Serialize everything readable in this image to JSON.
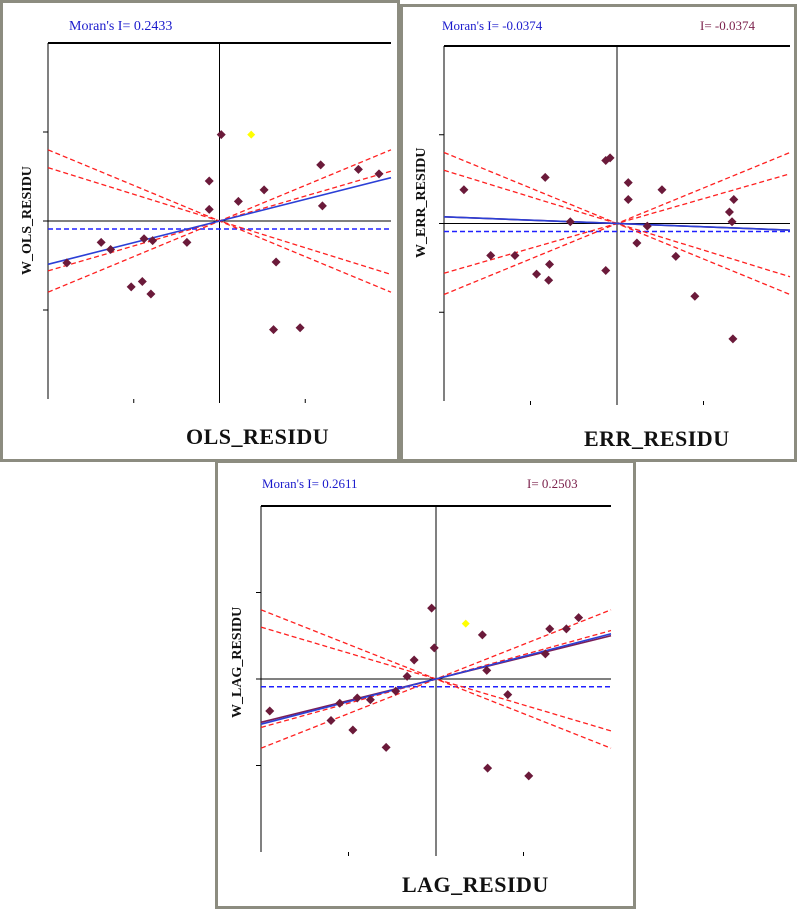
{
  "colors": {
    "point": "#6b1a3a",
    "highlight": "#ffff00",
    "axis": "#000000",
    "fit_primary": "#2b3fd6",
    "fit_secondary": "#7a1f5a",
    "envelope": "#ff2020",
    "mean_line": "#2020ff"
  },
  "chart_data": [
    {
      "type": "scatter",
      "title": "Moran's I= 0.2433",
      "secondary_title": "",
      "xlabel": "OLS_RESIDU",
      "ylabel": "W_OLS_RESIDU",
      "xlim": [
        -2,
        2
      ],
      "ylim": [
        -2,
        2
      ],
      "points": [
        [
          -1.78,
          -0.47
        ],
        [
          -1.38,
          -0.24
        ],
        [
          -1.27,
          -0.32
        ],
        [
          -1.03,
          -0.74
        ],
        [
          -0.9,
          -0.68
        ],
        [
          -0.88,
          -0.2
        ],
        [
          -0.8,
          -0.82
        ],
        [
          -0.78,
          -0.22
        ],
        [
          -0.38,
          -0.24
        ],
        [
          -0.12,
          0.13
        ],
        [
          -0.12,
          0.45
        ],
        [
          0.02,
          0.97
        ],
        [
          0.22,
          0.22
        ],
        [
          0.52,
          0.35
        ],
        [
          0.66,
          -0.46
        ],
        [
          0.63,
          -1.22
        ],
        [
          0.94,
          -1.2
        ],
        [
          1.18,
          0.63
        ],
        [
          1.2,
          0.17
        ],
        [
          1.62,
          0.58
        ],
        [
          1.86,
          0.53
        ]
      ],
      "highlight": [
        [
          0.37,
          0.97
        ]
      ],
      "fit_primary": {
        "slope": 0.2433,
        "intercept": 0.0
      },
      "fit_secondary": null,
      "envelope_lines": [
        {
          "slope": -0.4,
          "intercept": 0.0
        },
        {
          "slope": -0.3,
          "intercept": 0.0
        },
        {
          "slope": 0.4,
          "intercept": 0.0
        },
        {
          "slope": 0.28,
          "intercept": 0.0
        }
      ],
      "mean_line_y": -0.09
    },
    {
      "type": "scatter",
      "title": "Moran's I= -0.0374",
      "secondary_title": "I= -0.0374",
      "xlabel": "ERR_RESIDU",
      "ylabel": "W_ERR_RESIDU",
      "xlim": [
        -2,
        2
      ],
      "ylim": [
        -2,
        2
      ],
      "points": [
        [
          -1.77,
          0.38
        ],
        [
          -1.46,
          -0.36
        ],
        [
          -1.18,
          -0.36
        ],
        [
          -0.93,
          -0.57
        ],
        [
          -0.83,
          0.52
        ],
        [
          -0.79,
          -0.64
        ],
        [
          -0.78,
          -0.46
        ],
        [
          -0.54,
          0.02
        ],
        [
          -0.13,
          0.71
        ],
        [
          -0.08,
          0.74
        ],
        [
          -0.13,
          -0.53
        ],
        [
          0.13,
          0.46
        ],
        [
          0.13,
          0.27
        ],
        [
          0.23,
          -0.22
        ],
        [
          0.35,
          -0.03
        ],
        [
          0.52,
          0.38
        ],
        [
          0.68,
          -0.37
        ],
        [
          0.9,
          -0.82
        ],
        [
          1.33,
          0.02
        ],
        [
          1.3,
          0.13
        ],
        [
          1.35,
          0.27
        ],
        [
          1.34,
          -1.3
        ]
      ],
      "highlight": [],
      "fit_primary": {
        "slope": -0.0374,
        "intercept": 0.0
      },
      "fit_secondary": {
        "slope": -0.0374,
        "intercept": 0.0
      },
      "envelope_lines": [
        {
          "slope": -0.4,
          "intercept": 0.0
        },
        {
          "slope": -0.3,
          "intercept": 0.0
        },
        {
          "slope": 0.4,
          "intercept": 0.0
        },
        {
          "slope": 0.28,
          "intercept": 0.0
        }
      ],
      "mean_line_y": -0.09
    },
    {
      "type": "scatter",
      "title": "Moran's I= 0.2611",
      "secondary_title": "I= 0.2503",
      "xlabel": "LAG_RESIDU",
      "ylabel": "W_LAG_RESIDU",
      "xlim": [
        -2,
        2
      ],
      "ylim": [
        -2,
        2
      ],
      "points": [
        [
          -1.9,
          -0.37
        ],
        [
          -1.2,
          -0.48
        ],
        [
          -1.1,
          -0.28
        ],
        [
          -0.9,
          -0.22
        ],
        [
          -0.95,
          -0.59
        ],
        [
          -0.75,
          -0.24
        ],
        [
          -0.57,
          -0.79
        ],
        [
          -0.46,
          -0.14
        ],
        [
          -0.33,
          0.03
        ],
        [
          -0.25,
          0.22
        ],
        [
          -0.02,
          0.36
        ],
        [
          -0.05,
          0.82
        ],
        [
          0.53,
          0.51
        ],
        [
          0.58,
          0.1
        ],
        [
          0.82,
          -0.18
        ],
        [
          0.59,
          -1.03
        ],
        [
          1.06,
          -1.12
        ],
        [
          1.25,
          0.29
        ],
        [
          1.3,
          0.58
        ],
        [
          1.49,
          0.58
        ],
        [
          1.63,
          0.71
        ]
      ],
      "highlight": [
        [
          0.34,
          0.64
        ]
      ],
      "fit_primary": {
        "slope": 0.2611,
        "intercept": 0.0
      },
      "fit_secondary": {
        "slope": 0.2503,
        "intercept": 0.0
      },
      "envelope_lines": [
        {
          "slope": -0.4,
          "intercept": 0.0
        },
        {
          "slope": -0.3,
          "intercept": 0.0
        },
        {
          "slope": 0.4,
          "intercept": 0.0
        },
        {
          "slope": 0.28,
          "intercept": 0.0
        }
      ],
      "mean_line_y": -0.09
    }
  ]
}
